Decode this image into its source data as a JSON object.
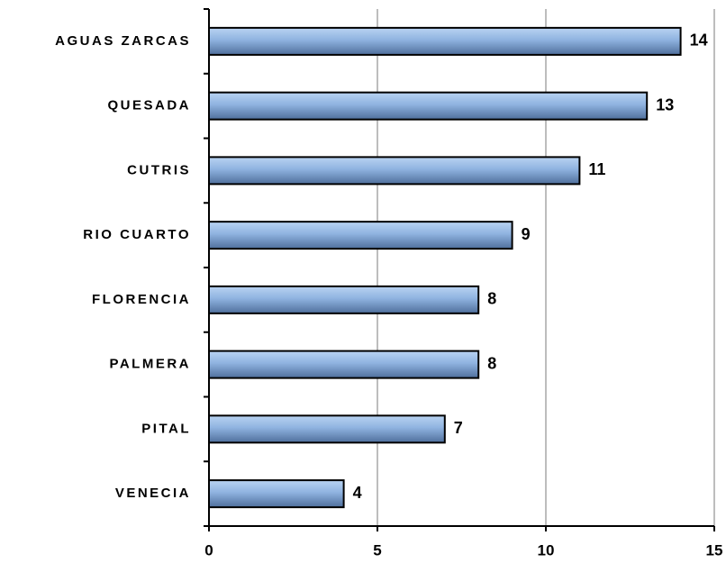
{
  "chart_data": {
    "type": "bar",
    "orientation": "horizontal",
    "categories": [
      "AGUAS ZARCAS",
      "QUESADA",
      "CUTRIS",
      "RIO CUARTO",
      "FLORENCIA",
      "PALMERA",
      "PITAL",
      "VENECIA"
    ],
    "values": [
      14,
      13,
      11,
      9,
      8,
      8,
      7,
      4
    ],
    "color": "#7fa6d8",
    "xlim": [
      0,
      15
    ],
    "xticks": [
      0,
      5,
      10,
      15
    ],
    "grid": true
  }
}
